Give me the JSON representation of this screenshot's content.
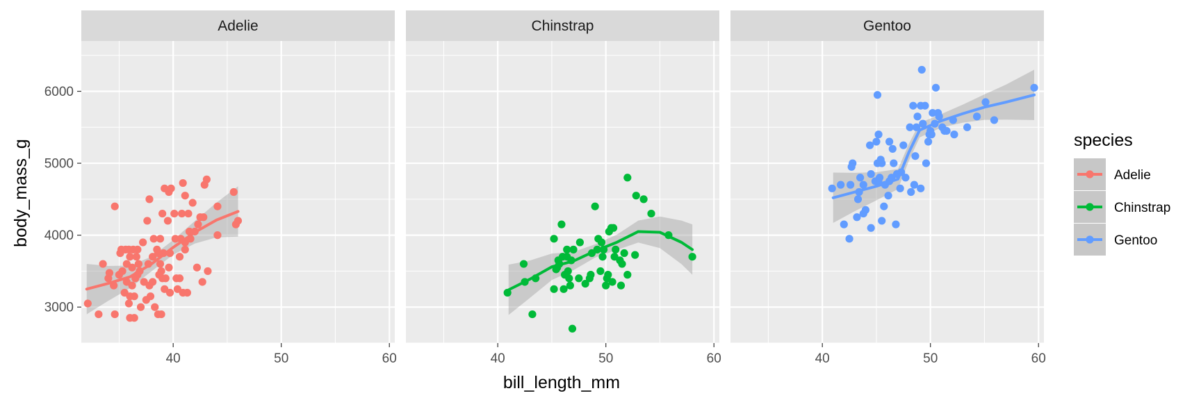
{
  "chart_data": {
    "type": "scatter",
    "facet_by": "species",
    "xlabel": "bill_length_mm",
    "ylabel": "body_mass_g",
    "xlim": [
      31.5,
      60.5
    ],
    "ylim": [
      2500,
      6700
    ],
    "x_ticks": [
      40,
      50,
      60
    ],
    "x_tick_labels": [
      "40",
      "50",
      "60"
    ],
    "y_ticks": [
      3000,
      4000,
      5000,
      6000
    ],
    "y_tick_labels": [
      "3000",
      "4000",
      "5000",
      "6000"
    ],
    "grid": true,
    "smooth": "loess",
    "legend": {
      "title": "species",
      "placement": "right"
    },
    "panels": [
      {
        "label": "Adelie",
        "color": "#F8766D",
        "points": [
          [
            32.1,
            3050
          ],
          [
            33.1,
            2900
          ],
          [
            33.5,
            3600
          ],
          [
            34.0,
            3400
          ],
          [
            34.1,
            3475
          ],
          [
            34.5,
            3300
          ],
          [
            34.6,
            4400
          ],
          [
            34.6,
            2900
          ],
          [
            35.0,
            3450
          ],
          [
            35.1,
            3750
          ],
          [
            35.2,
            3800
          ],
          [
            35.3,
            3500
          ],
          [
            35.5,
            3200
          ],
          [
            35.6,
            3800
          ],
          [
            35.7,
            3350
          ],
          [
            35.7,
            3600
          ],
          [
            35.9,
            3050
          ],
          [
            35.9,
            3800
          ],
          [
            36.0,
            3150
          ],
          [
            36.0,
            3700
          ],
          [
            36.0,
            2850
          ],
          [
            36.2,
            3550
          ],
          [
            36.2,
            3300
          ],
          [
            36.3,
            3800
          ],
          [
            36.4,
            3150
          ],
          [
            36.4,
            2850
          ],
          [
            36.5,
            3400
          ],
          [
            36.6,
            3700
          ],
          [
            36.7,
            3800
          ],
          [
            36.7,
            3450
          ],
          [
            36.8,
            3600
          ],
          [
            36.9,
            3500
          ],
          [
            37.0,
            3000
          ],
          [
            37.2,
            3900
          ],
          [
            37.3,
            3350
          ],
          [
            37.5,
            3100
          ],
          [
            37.6,
            4200
          ],
          [
            37.7,
            3600
          ],
          [
            37.8,
            3300
          ],
          [
            37.8,
            4500
          ],
          [
            37.9,
            3150
          ],
          [
            38.1,
            3700
          ],
          [
            38.1,
            3350
          ],
          [
            38.2,
            3950
          ],
          [
            38.3,
            3000
          ],
          [
            38.5,
            3800
          ],
          [
            38.6,
            2900
          ],
          [
            38.6,
            3750
          ],
          [
            38.7,
            3450
          ],
          [
            38.8,
            3600
          ],
          [
            38.8,
            3950
          ],
          [
            38.9,
            3500
          ],
          [
            38.9,
            2900
          ],
          [
            39.0,
            3400
          ],
          [
            39.0,
            4300
          ],
          [
            39.1,
            3750
          ],
          [
            39.2,
            3250
          ],
          [
            39.2,
            4650
          ],
          [
            39.3,
            3400
          ],
          [
            39.5,
            4200
          ],
          [
            39.6,
            3550
          ],
          [
            39.6,
            4600
          ],
          [
            39.7,
            3750
          ],
          [
            39.7,
            3200
          ],
          [
            39.8,
            4650
          ],
          [
            40.1,
            4300
          ],
          [
            40.2,
            3950
          ],
          [
            40.3,
            3400
          ],
          [
            40.4,
            3250
          ],
          [
            40.6,
            3400
          ],
          [
            40.6,
            3700
          ],
          [
            40.7,
            3950
          ],
          [
            40.8,
            4300
          ],
          [
            40.9,
            3200
          ],
          [
            40.9,
            4725
          ],
          [
            41.1,
            3800
          ],
          [
            41.1,
            3900
          ],
          [
            41.1,
            4550
          ],
          [
            41.3,
            3200
          ],
          [
            41.4,
            4300
          ],
          [
            41.5,
            4050
          ],
          [
            41.6,
            3950
          ],
          [
            41.8,
            4450
          ],
          [
            42.0,
            4050
          ],
          [
            42.2,
            3550
          ],
          [
            42.3,
            4150
          ],
          [
            42.5,
            4250
          ],
          [
            42.7,
            3350
          ],
          [
            42.8,
            4250
          ],
          [
            42.9,
            4700
          ],
          [
            43.1,
            4775
          ],
          [
            43.2,
            3500
          ],
          [
            44.1,
            4000
          ],
          [
            44.1,
            4400
          ],
          [
            45.6,
            4600
          ],
          [
            45.8,
            4150
          ],
          [
            46.0,
            4200
          ]
        ],
        "smooth_x": [
          32,
          34,
          36,
          38,
          40,
          42,
          44,
          46
        ],
        "smooth_y": [
          3250,
          3330,
          3420,
          3600,
          3830,
          4040,
          4210,
          4330
        ]
      },
      {
        "label": "Chinstrap",
        "color": "#00BA38",
        "points": [
          [
            40.9,
            3200
          ],
          [
            42.4,
            3600
          ],
          [
            42.5,
            3350
          ],
          [
            43.2,
            2900
          ],
          [
            43.5,
            3400
          ],
          [
            45.2,
            3950
          ],
          [
            45.2,
            3250
          ],
          [
            45.4,
            3525
          ],
          [
            45.5,
            3550
          ],
          [
            45.6,
            3650
          ],
          [
            45.7,
            3600
          ],
          [
            45.9,
            4150
          ],
          [
            46.0,
            3700
          ],
          [
            46.1,
            3250
          ],
          [
            46.2,
            3450
          ],
          [
            46.4,
            3800
          ],
          [
            46.4,
            3700
          ],
          [
            46.5,
            3500
          ],
          [
            46.6,
            3400
          ],
          [
            46.7,
            3300
          ],
          [
            46.8,
            3650
          ],
          [
            46.9,
            2700
          ],
          [
            47.0,
            3800
          ],
          [
            47.5,
            3400
          ],
          [
            47.6,
            3900
          ],
          [
            48.1,
            3325
          ],
          [
            48.5,
            3400
          ],
          [
            48.6,
            3450
          ],
          [
            48.7,
            3750
          ],
          [
            49.0,
            4400
          ],
          [
            49.2,
            3800
          ],
          [
            49.3,
            3950
          ],
          [
            49.5,
            3500
          ],
          [
            49.6,
            3900
          ],
          [
            49.7,
            3700
          ],
          [
            49.8,
            3800
          ],
          [
            50.0,
            3300
          ],
          [
            50.1,
            3400
          ],
          [
            50.2,
            3450
          ],
          [
            50.3,
            4050
          ],
          [
            50.5,
            4100
          ],
          [
            50.6,
            3350
          ],
          [
            50.7,
            4100
          ],
          [
            50.8,
            3700
          ],
          [
            50.9,
            3800
          ],
          [
            51.3,
            3650
          ],
          [
            51.4,
            3300
          ],
          [
            51.5,
            3600
          ],
          [
            51.7,
            3750
          ],
          [
            52.0,
            4800
          ],
          [
            52.0,
            3450
          ],
          [
            52.7,
            3725
          ],
          [
            52.8,
            4550
          ],
          [
            53.5,
            4500
          ],
          [
            54.2,
            4300
          ],
          [
            55.8,
            4000
          ],
          [
            58.0,
            3700
          ]
        ],
        "smooth_x": [
          41,
          43,
          45,
          47,
          49,
          51,
          53,
          55,
          57,
          58
        ],
        "smooth_y": [
          3240,
          3390,
          3560,
          3640,
          3780,
          3900,
          4050,
          4040,
          3900,
          3800
        ]
      },
      {
        "label": "Gentoo",
        "color": "#619CFF",
        "points": [
          [
            40.9,
            4650
          ],
          [
            41.7,
            4700
          ],
          [
            42.0,
            4150
          ],
          [
            42.5,
            3950
          ],
          [
            42.6,
            4700
          ],
          [
            42.7,
            4950
          ],
          [
            42.8,
            5000
          ],
          [
            43.2,
            4250
          ],
          [
            43.3,
            4500
          ],
          [
            43.4,
            4600
          ],
          [
            43.5,
            4800
          ],
          [
            43.8,
            4300
          ],
          [
            43.8,
            4700
          ],
          [
            44.0,
            4350
          ],
          [
            44.4,
            5250
          ],
          [
            44.5,
            4100
          ],
          [
            44.5,
            4850
          ],
          [
            44.9,
            4750
          ],
          [
            45.0,
            5300
          ],
          [
            45.1,
            5000
          ],
          [
            45.1,
            5950
          ],
          [
            45.2,
            4750
          ],
          [
            45.2,
            5400
          ],
          [
            45.3,
            4800
          ],
          [
            45.4,
            5050
          ],
          [
            45.5,
            4200
          ],
          [
            45.5,
            5000
          ],
          [
            45.7,
            4400
          ],
          [
            45.8,
            4700
          ],
          [
            46.1,
            4550
          ],
          [
            46.2,
            4750
          ],
          [
            46.2,
            5300
          ],
          [
            46.4,
            4800
          ],
          [
            46.5,
            5200
          ],
          [
            46.6,
            5000
          ],
          [
            46.8,
            4150
          ],
          [
            46.9,
            4850
          ],
          [
            47.2,
            4650
          ],
          [
            47.3,
            4875
          ],
          [
            47.5,
            5250
          ],
          [
            47.7,
            4800
          ],
          [
            48.1,
            5500
          ],
          [
            48.2,
            4600
          ],
          [
            48.4,
            5800
          ],
          [
            48.5,
            4700
          ],
          [
            48.6,
            5100
          ],
          [
            48.7,
            5500
          ],
          [
            48.8,
            5650
          ],
          [
            49.1,
            4650
          ],
          [
            49.1,
            5800
          ],
          [
            49.2,
            6300
          ],
          [
            49.3,
            5550
          ],
          [
            49.5,
            5800
          ],
          [
            49.6,
            5000
          ],
          [
            49.8,
            5300
          ],
          [
            49.9,
            5400
          ],
          [
            50.0,
            5450
          ],
          [
            50.1,
            5400
          ],
          [
            50.2,
            5700
          ],
          [
            50.4,
            5550
          ],
          [
            50.5,
            6050
          ],
          [
            50.7,
            5700
          ],
          [
            50.8,
            5650
          ],
          [
            51.1,
            5500
          ],
          [
            51.3,
            5450
          ],
          [
            51.5,
            5450
          ],
          [
            52.1,
            5600
          ],
          [
            52.2,
            5400
          ],
          [
            53.4,
            5500
          ],
          [
            54.3,
            5650
          ],
          [
            55.1,
            5850
          ],
          [
            55.9,
            5600
          ],
          [
            59.6,
            6050
          ]
        ],
        "smooth_x": [
          41,
          43,
          45,
          47,
          48,
          49,
          51,
          53,
          55,
          57,
          59.6
        ],
        "smooth_y": [
          4520,
          4600,
          4680,
          4780,
          5150,
          5460,
          5590,
          5690,
          5780,
          5850,
          5950
        ]
      }
    ]
  }
}
